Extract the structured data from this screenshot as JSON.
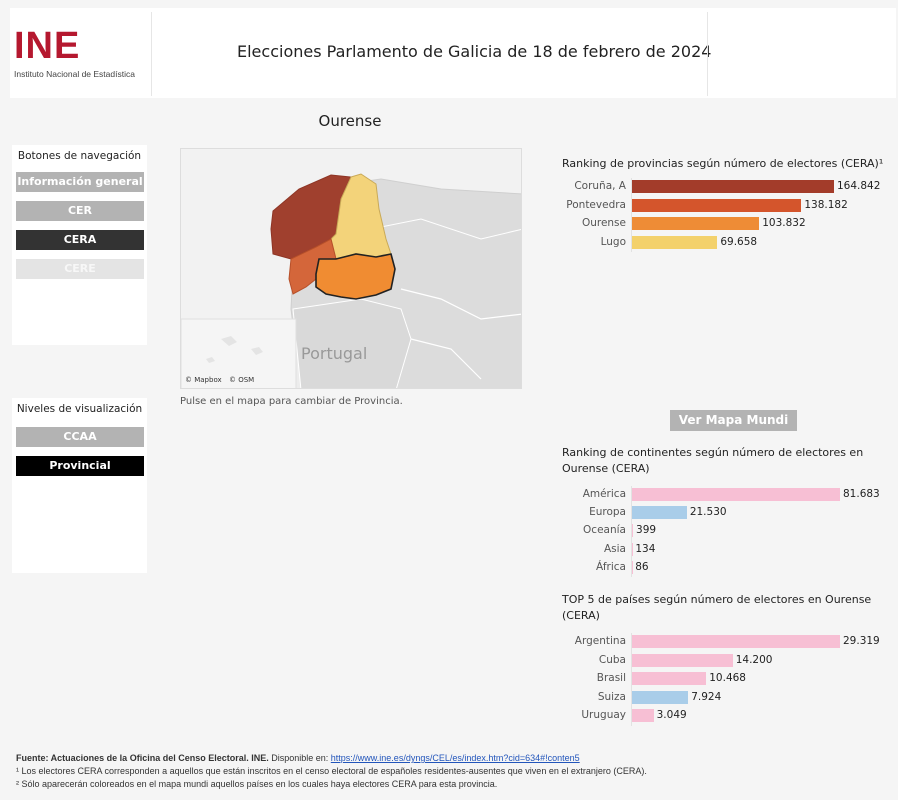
{
  "header": {
    "logo_text": "INE",
    "logo_subtitle": "Instituto Nacional de Estadística",
    "title": "Elecciones Parlamento de Galicia de 18 de febrero de 2024"
  },
  "navigation": {
    "title": "Botones de navegación",
    "buttons": [
      "Información general",
      "CER",
      "CERA",
      "CERE"
    ],
    "active": "CERA"
  },
  "levels": {
    "title": "Niveles de visualización",
    "buttons": [
      "CCAA",
      "Provincial"
    ],
    "active": "Provincial"
  },
  "province_title": "Ourense",
  "map": {
    "label_country": "Portugal",
    "attribution": [
      "© Mapbox",
      "© OSM"
    ],
    "caption": "Pulse en el mapa para cambiar de Provincia.",
    "colors": {
      "coruna": "#a0402e",
      "lugo": "#f3d37a",
      "pontevedra": "#d4663a",
      "ourense": "#f08c32"
    }
  },
  "world_map_button": "Ver Mapa Mundi",
  "chart_data": [
    {
      "type": "bar",
      "title": "Ranking de provincias según número de electores (CERA)¹",
      "categories": [
        "Coruña, A",
        "Pontevedra",
        "Ourense",
        "Lugo"
      ],
      "values": [
        164842,
        138182,
        103832,
        69658
      ],
      "value_labels": [
        "164.842",
        "138.182",
        "103.832",
        "69.658"
      ],
      "colors": [
        "#a33c2a",
        "#d4552c",
        "#ee8c36",
        "#f3d16b"
      ]
    },
    {
      "type": "bar",
      "title": "Ranking de continentes según número de electores en Ourense (CERA)",
      "categories": [
        "América",
        "Europa",
        "Oceanía",
        "Asia",
        "África"
      ],
      "values": [
        81683,
        21530,
        399,
        134,
        86
      ],
      "value_labels": [
        "81.683",
        "21.530",
        "399",
        "134",
        "86"
      ],
      "colors": [
        "#f7bfd4",
        "#a9cde9",
        "#f7bfd4",
        "#f7bfd4",
        "#f7bfd4"
      ]
    },
    {
      "type": "bar",
      "title": "TOP 5 de países según número de electores en Ourense (CERA)",
      "categories": [
        "Argentina",
        "Cuba",
        "Brasil",
        "Suiza",
        "Uruguay"
      ],
      "values": [
        29319,
        14200,
        10468,
        7924,
        3049
      ],
      "value_labels": [
        "29.319",
        "14.200",
        "10.468",
        "7.924",
        "3.049"
      ],
      "colors": [
        "#f7bfd4",
        "#f7bfd4",
        "#f7bfd4",
        "#a9cde9",
        "#f7bfd4"
      ]
    }
  ],
  "footer": {
    "source_bold": "Fuente: Actuaciones de la Oficina del Censo Electoral. INE.",
    "source_rest": " Disponible en: ",
    "source_link": "https://www.ine.es/dyngs/CEL/es/index.htm?cid=634#!conten5",
    "note1": "¹ Los electores CERA corresponden a aquellos que están inscritos en el censo electoral de españoles residentes-ausentes que viven en el extranjero (CERA).",
    "note2": "² Sólo aparecerán coloreados en el mapa mundi aquellos países en los cuales haya electores CERA para esta provincia."
  }
}
